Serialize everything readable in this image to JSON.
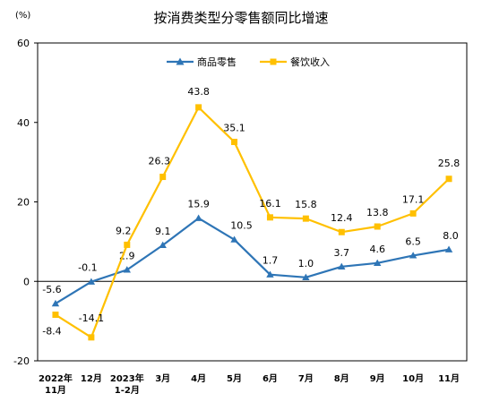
{
  "chart_data": {
    "type": "line",
    "title": "按消费类型分零售额同比增速",
    "unit_label": "(%)",
    "ylim": [
      -20,
      60
    ],
    "yticks": [
      -20,
      0,
      20,
      40,
      60
    ],
    "categories": [
      [
        "2022年",
        "11月"
      ],
      [
        "12月"
      ],
      [
        "2023年",
        "1-2月"
      ],
      [
        "3月"
      ],
      [
        "4月"
      ],
      [
        "5月"
      ],
      [
        "6月"
      ],
      [
        "7月"
      ],
      [
        "8月"
      ],
      [
        "9月"
      ],
      [
        "10月"
      ],
      [
        "11月"
      ]
    ],
    "series": [
      {
        "name": "商品零售",
        "color": "#2E75B6",
        "marker": "triangle",
        "values": [
          -5.6,
          -0.1,
          2.9,
          9.1,
          15.9,
          10.5,
          1.7,
          1.0,
          3.7,
          4.6,
          6.5,
          8.0
        ],
        "labels": [
          "-5.6",
          "-0.1",
          "2.9",
          "9.1",
          "15.9",
          "10.5",
          "1.7",
          "1.0",
          "3.7",
          "4.6",
          "6.5",
          "8.0"
        ]
      },
      {
        "name": "餐饮收入",
        "color": "#FFC000",
        "marker": "square",
        "values": [
          -8.4,
          -14.1,
          9.2,
          26.3,
          43.8,
          35.1,
          16.1,
          15.8,
          12.4,
          13.8,
          17.1,
          25.8
        ],
        "labels": [
          "-8.4",
          "-14.1",
          "9.2",
          "26.3",
          "43.8",
          "35.1",
          "16.1",
          "15.8",
          "12.4",
          "13.8",
          "17.1",
          "25.8"
        ]
      }
    ],
    "grid": false,
    "legend_position": "top-right"
  }
}
